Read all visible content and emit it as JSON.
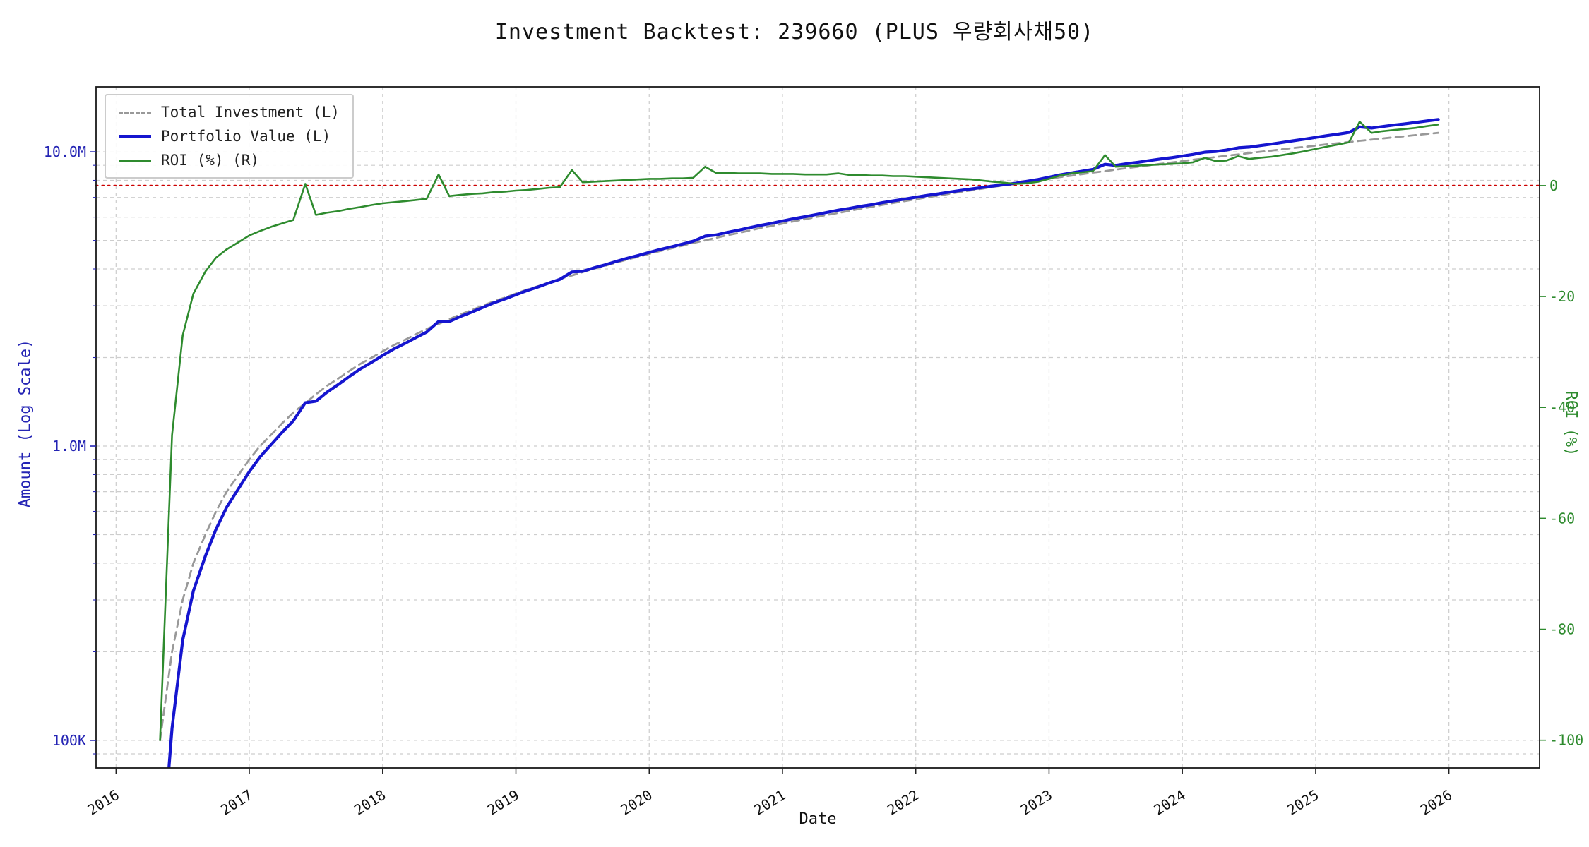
{
  "chart_data": {
    "type": "line",
    "title": "Investment Backtest: 239660 (PLUS 우량회사채50)",
    "x_axis": {
      "label": "Date",
      "ticks": [
        "2016",
        "2017",
        "2018",
        "2019",
        "2020",
        "2021",
        "2022",
        "2023",
        "2024",
        "2025",
        "2026"
      ],
      "tick_values": [
        2016,
        2017,
        2018,
        2019,
        2020,
        2021,
        2022,
        2023,
        2024,
        2025,
        2026
      ],
      "range": [
        2015.85,
        2026.68
      ]
    },
    "left_axis": {
      "label": "Amount (Log Scale)",
      "scale": "log",
      "color": "#2424b4",
      "ticks": [
        {
          "value": 100000,
          "label": "100K"
        },
        {
          "value": 1000000,
          "label": "1.0M"
        },
        {
          "value": 10000000,
          "label": "10.0M"
        }
      ],
      "range": [
        80600,
        16630000
      ]
    },
    "right_axis": {
      "label": "ROI (%)",
      "scale": "linear",
      "color": "#2e8b2e",
      "ticks": [
        {
          "value": 0,
          "label": "0"
        },
        {
          "value": -20,
          "label": "-20"
        },
        {
          "value": -40,
          "label": "-40"
        },
        {
          "value": -60,
          "label": "-60"
        },
        {
          "value": -80,
          "label": "-80"
        },
        {
          "value": -100,
          "label": "-100"
        }
      ],
      "range": [
        -105,
        17.8
      ]
    },
    "grid": true,
    "legend_position": "upper-left",
    "zero_line": {
      "axis": "right",
      "value": 0,
      "color": "#cc0000",
      "style": "dotted"
    },
    "x": [
      2016.33,
      2016.42,
      2016.5,
      2016.58,
      2016.67,
      2016.75,
      2016.83,
      2016.92,
      2017,
      2017.08,
      2017.17,
      2017.25,
      2017.33,
      2017.42,
      2017.5,
      2017.58,
      2017.67,
      2017.75,
      2017.83,
      2017.92,
      2018,
      2018.08,
      2018.17,
      2018.25,
      2018.33,
      2018.42,
      2018.5,
      2018.58,
      2018.67,
      2018.75,
      2018.83,
      2018.92,
      2019,
      2019.08,
      2019.17,
      2019.25,
      2019.33,
      2019.42,
      2019.5,
      2019.58,
      2019.67,
      2019.75,
      2019.83,
      2019.92,
      2020,
      2020.08,
      2020.17,
      2020.25,
      2020.33,
      2020.42,
      2020.5,
      2020.58,
      2020.67,
      2020.75,
      2020.83,
      2020.92,
      2021,
      2021.08,
      2021.17,
      2021.25,
      2021.33,
      2021.42,
      2021.5,
      2021.58,
      2021.67,
      2021.75,
      2021.83,
      2021.92,
      2022,
      2022.08,
      2022.17,
      2022.25,
      2022.33,
      2022.42,
      2022.5,
      2022.58,
      2022.67,
      2022.75,
      2022.83,
      2022.92,
      2023,
      2023.08,
      2023.17,
      2023.25,
      2023.33,
      2023.42,
      2023.5,
      2023.58,
      2023.67,
      2023.75,
      2023.83,
      2023.92,
      2024,
      2024.08,
      2024.17,
      2024.25,
      2024.33,
      2024.42,
      2024.5,
      2024.58,
      2024.67,
      2024.75,
      2024.83,
      2024.92,
      2025,
      2025.08,
      2025.17,
      2025.25,
      2025.33,
      2025.42,
      2025.5,
      2025.58,
      2025.67,
      2025.75,
      2025.83,
      2025.92
    ],
    "series": [
      {
        "name": "Total Investment (L)",
        "axis": "left",
        "color": "#999999",
        "style": "dashed",
        "width": 2.8,
        "values": [
          100000,
          200000,
          300000,
          400000,
          500000,
          600000,
          700000,
          800000,
          900000,
          1000000,
          1100000,
          1200000,
          1300000,
          1400000,
          1500000,
          1600000,
          1700000,
          1800000,
          1900000,
          2000000,
          2100000,
          2200000,
          2300000,
          2400000,
          2500000,
          2600000,
          2700000,
          2800000,
          2900000,
          3000000,
          3100000,
          3200000,
          3300000,
          3400000,
          3500000,
          3600000,
          3700000,
          3800000,
          3900000,
          4000000,
          4100000,
          4200000,
          4300000,
          4400000,
          4500000,
          4600000,
          4700000,
          4800000,
          4900000,
          5000000,
          5100000,
          5200000,
          5300000,
          5400000,
          5500000,
          5600000,
          5700000,
          5800000,
          5900000,
          6000000,
          6100000,
          6200000,
          6300000,
          6400000,
          6500000,
          6600000,
          6700000,
          6800000,
          6900000,
          7000000,
          7100000,
          7200000,
          7300000,
          7400000,
          7500000,
          7600000,
          7700000,
          7800000,
          7900000,
          8000000,
          8100000,
          8200000,
          8300000,
          8400000,
          8500000,
          8600000,
          8700000,
          8800000,
          8900000,
          9000000,
          9100000,
          9200000,
          9300000,
          9400000,
          9500000,
          9600000,
          9700000,
          9800000,
          9900000,
          10000000,
          10100000,
          10200000,
          10300000,
          10400000,
          10500000,
          10600000,
          10700000,
          10800000,
          10900000,
          11000000,
          11100000,
          11200000,
          11300000,
          11400000,
          11500000,
          11600000
        ]
      },
      {
        "name": "Portfolio Value (L)",
        "axis": "left",
        "color": "#1515cf",
        "style": "solid",
        "width": 4.2,
        "values": [
          0,
          110000,
          219000,
          322000,
          423000,
          522000,
          620000,
          718000,
          819000,
          918000,
          1019000,
          1118000,
          1219000,
          1404000,
          1421000,
          1522000,
          1622000,
          1724000,
          1826000,
          1930000,
          2033000,
          2134000,
          2236000,
          2338000,
          2440000,
          2652000,
          2649000,
          2752000,
          2856000,
          2958000,
          3063000,
          3165000,
          3270000,
          3373000,
          3479000,
          3586000,
          3689000,
          3906000,
          3923000,
          4028000,
          4133000,
          4238000,
          4343000,
          4448000,
          4554000,
          4655000,
          4761000,
          4862000,
          4969000,
          5170000,
          5217000,
          5320000,
          5417000,
          5519000,
          5621000,
          5718000,
          5820000,
          5922000,
          6018000,
          6120000,
          6222000,
          6336000,
          6420000,
          6522000,
          6617000,
          6719000,
          6814000,
          6916000,
          7010000,
          7105000,
          7199000,
          7294000,
          7388000,
          7481000,
          7568000,
          7653000,
          7739000,
          7823000,
          7932000,
          8056000,
          8197000,
          8348000,
          8483000,
          8602000,
          8721000,
          9073000,
          8996000,
          9108000,
          9220000,
          9333000,
          9446000,
          9559000,
          9672000,
          9795000,
          9975000,
          10022000,
          10137000,
          10319000,
          10375000,
          10500000,
          10625000,
          10761000,
          10897000,
          11045000,
          11193000,
          11342000,
          11492000,
          11642000,
          12154000,
          12045000,
          12188000,
          12320000,
          12453000,
          12586000,
          12731000,
          12876000
        ]
      },
      {
        "name": "ROI (%) (R)",
        "axis": "right",
        "color": "#2e8b2e",
        "style": "solid",
        "width": 2.6,
        "values": [
          -100,
          -45,
          -27,
          -19.5,
          -15.5,
          -13,
          -11.5,
          -10.2,
          -9,
          -8.2,
          -7.4,
          -6.8,
          -6.2,
          0.3,
          -5.3,
          -4.9,
          -4.6,
          -4.2,
          -3.9,
          -3.5,
          -3.2,
          -3,
          -2.8,
          -2.6,
          -2.4,
          2,
          -1.9,
          -1.7,
          -1.5,
          -1.4,
          -1.2,
          -1.1,
          -0.9,
          -0.8,
          -0.6,
          -0.4,
          -0.3,
          2.8,
          0.6,
          0.7,
          0.8,
          0.9,
          1,
          1.1,
          1.2,
          1.2,
          1.3,
          1.3,
          1.4,
          3.4,
          2.3,
          2.3,
          2.2,
          2.2,
          2.2,
          2.1,
          2.1,
          2.1,
          2,
          2,
          2,
          2.2,
          1.9,
          1.9,
          1.8,
          1.8,
          1.7,
          1.7,
          1.6,
          1.5,
          1.4,
          1.3,
          1.2,
          1.1,
          0.9,
          0.7,
          0.5,
          0.3,
          0.4,
          0.7,
          1.2,
          1.8,
          2.2,
          2.4,
          2.6,
          5.5,
          3.4,
          3.5,
          3.6,
          3.7,
          3.8,
          3.9,
          4,
          4.2,
          5,
          4.4,
          4.5,
          5.3,
          4.8,
          5,
          5.2,
          5.5,
          5.8,
          6.2,
          6.6,
          7,
          7.4,
          7.8,
          11.5,
          9.5,
          9.8,
          10,
          10.2,
          10.4,
          10.7,
          11
        ]
      }
    ]
  }
}
